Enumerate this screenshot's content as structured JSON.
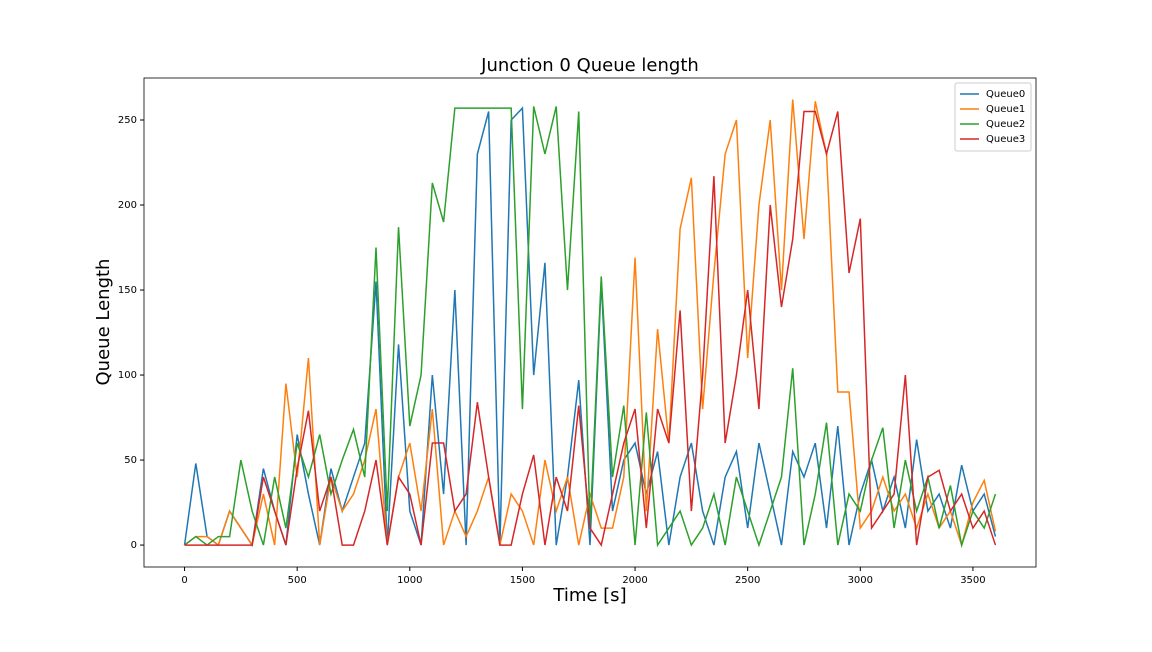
{
  "chart_data": {
    "type": "line",
    "title": "Junction 0 Queue length",
    "xlabel": "Time [s]",
    "ylabel": "Queue Length",
    "x": [
      0,
      50,
      100,
      150,
      200,
      250,
      300,
      350,
      400,
      450,
      500,
      550,
      600,
      650,
      700,
      750,
      800,
      850,
      900,
      950,
      1000,
      1050,
      1100,
      1150,
      1200,
      1250,
      1300,
      1350,
      1400,
      1450,
      1500,
      1550,
      1600,
      1650,
      1700,
      1750,
      1800,
      1850,
      1900,
      1950,
      2000,
      2050,
      2100,
      2150,
      2200,
      2250,
      2300,
      2350,
      2400,
      2450,
      2500,
      2550,
      2600,
      2650,
      2700,
      2750,
      2800,
      2850,
      2900,
      2950,
      3000,
      3050,
      3100,
      3150,
      3200,
      3250,
      3300,
      3350,
      3400,
      3450,
      3500,
      3550,
      3600
    ],
    "series": [
      {
        "name": "Queue0",
        "color": "#1f77b4",
        "values": [
          0,
          48,
          5,
          0,
          20,
          10,
          0,
          45,
          20,
          0,
          65,
          30,
          0,
          45,
          20,
          40,
          60,
          155,
          0,
          118,
          20,
          0,
          100,
          30,
          150,
          0,
          230,
          255,
          0,
          250,
          257,
          100,
          166,
          0,
          40,
          97,
          0,
          155,
          20,
          50,
          60,
          30,
          55,
          0,
          40,
          60,
          20,
          0,
          40,
          55,
          10,
          60,
          30,
          0,
          55,
          40,
          60,
          10,
          70,
          0,
          30,
          50,
          20,
          40,
          10,
          62,
          20,
          30,
          10,
          47,
          20,
          30,
          5
        ]
      },
      {
        "name": "Queue1",
        "color": "#ff7f0e",
        "values": [
          0,
          5,
          5,
          0,
          20,
          10,
          0,
          30,
          0,
          95,
          40,
          110,
          0,
          40,
          20,
          30,
          50,
          80,
          0,
          40,
          60,
          20,
          80,
          0,
          20,
          5,
          20,
          40,
          0,
          30,
          20,
          0,
          50,
          20,
          40,
          0,
          30,
          10,
          10,
          40,
          169,
          20,
          127,
          60,
          186,
          216,
          80,
          160,
          230,
          250,
          110,
          200,
          250,
          150,
          262,
          180,
          261,
          230,
          90,
          90,
          10,
          20,
          40,
          20,
          30,
          10,
          30,
          10,
          20,
          0,
          25,
          38,
          8
        ]
      },
      {
        "name": "Queue2",
        "color": "#2ca02c",
        "values": [
          0,
          5,
          0,
          5,
          5,
          50,
          20,
          0,
          40,
          10,
          60,
          40,
          65,
          30,
          50,
          68,
          40,
          175,
          20,
          187,
          70,
          100,
          213,
          190,
          257,
          257,
          257,
          257,
          257,
          257,
          80,
          258,
          230,
          258,
          150,
          255,
          10,
          158,
          40,
          82,
          0,
          78,
          0,
          10,
          20,
          0,
          10,
          30,
          0,
          40,
          20,
          0,
          20,
          40,
          104,
          0,
          30,
          72,
          0,
          30,
          20,
          50,
          69,
          10,
          50,
          20,
          40,
          10,
          35,
          0,
          20,
          10,
          30
        ]
      },
      {
        "name": "Queue3",
        "color": "#d62728",
        "values": [
          0,
          0,
          0,
          0,
          0,
          0,
          0,
          40,
          20,
          0,
          45,
          79,
          20,
          40,
          0,
          0,
          20,
          50,
          0,
          40,
          30,
          0,
          60,
          60,
          20,
          30,
          84,
          40,
          0,
          0,
          30,
          53,
          0,
          40,
          20,
          82,
          10,
          0,
          30,
          60,
          80,
          10,
          80,
          60,
          138,
          20,
          100,
          217,
          60,
          100,
          150,
          80,
          200,
          140,
          180,
          255,
          255,
          230,
          255,
          160,
          192,
          10,
          20,
          30,
          100,
          0,
          40,
          44,
          20,
          30,
          10,
          20,
          0
        ]
      }
    ],
    "xlim": [
      -180,
      3780
    ],
    "ylim": [
      -12.9,
      274.7
    ],
    "xticks": [
      0,
      500,
      1000,
      1500,
      2000,
      2500,
      3000,
      3500
    ],
    "yticks": [
      0,
      50,
      100,
      150,
      200,
      250
    ],
    "legend": "upper right"
  }
}
